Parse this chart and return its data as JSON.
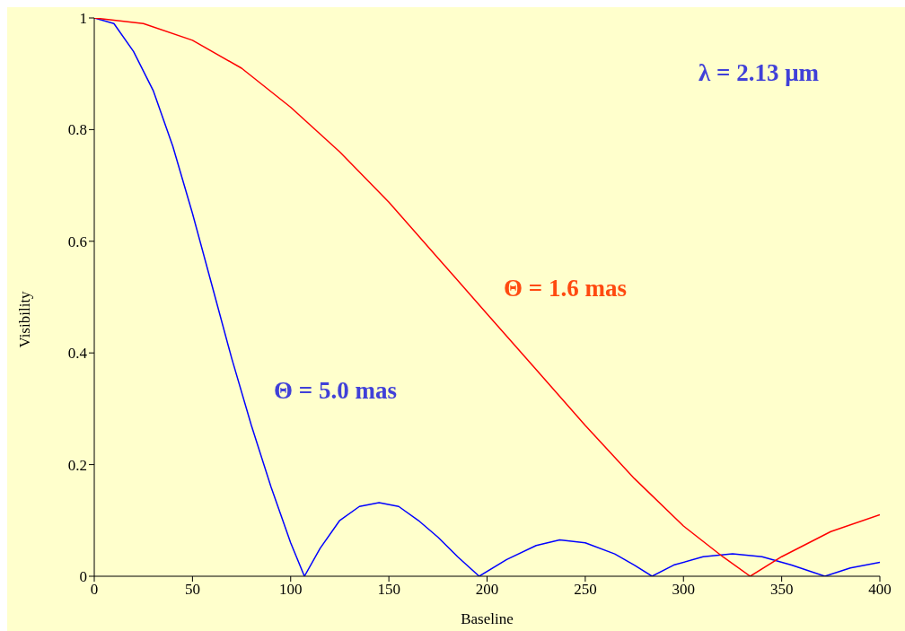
{
  "chart_data": {
    "type": "line",
    "xlabel": "Baseline",
    "ylabel": "Visibility",
    "xlim": [
      0,
      400
    ],
    "xticks": [
      0,
      50,
      100,
      150,
      200,
      250,
      300,
      350,
      400
    ],
    "ylim": [
      0,
      1
    ],
    "yticks": [
      0,
      0.2,
      0.4,
      0.6,
      0.8,
      1
    ],
    "grid": false,
    "legend": false,
    "marker": "none",
    "line_style": "solid",
    "annotations": [
      "λ = 2.13 μm"
    ],
    "series": [
      {
        "name": "Θ = 5.0 mas",
        "color": "#0000ff",
        "x": [
          0,
          10,
          20,
          30,
          40,
          50,
          60,
          70,
          80,
          90,
          100,
          107,
          115,
          125,
          135,
          145,
          155,
          165,
          175,
          185,
          196,
          210,
          225,
          237,
          250,
          265,
          275,
          284,
          295,
          310,
          325,
          340,
          355,
          372,
          385,
          400
        ],
        "values": [
          1,
          0.99,
          0.94,
          0.87,
          0.77,
          0.65,
          0.52,
          0.39,
          0.27,
          0.16,
          0.06,
          0,
          0.05,
          0.1,
          0.125,
          0.132,
          0.125,
          0.1,
          0.07,
          0.035,
          0,
          0.03,
          0.055,
          0.065,
          0.06,
          0.04,
          0.02,
          0,
          0.02,
          0.035,
          0.04,
          0.035,
          0.02,
          0,
          0.015,
          0.025
        ]
      },
      {
        "name": "Θ = 1.6 mas",
        "color": "#ff0000",
        "x": [
          0,
          25,
          50,
          75,
          100,
          125,
          150,
          175,
          200,
          225,
          250,
          275,
          300,
          320,
          334,
          350,
          375,
          400
        ],
        "values": [
          1,
          0.99,
          0.96,
          0.91,
          0.84,
          0.76,
          0.67,
          0.57,
          0.47,
          0.37,
          0.27,
          0.175,
          0.09,
          0.035,
          0,
          0.035,
          0.08,
          0.11
        ]
      }
    ]
  }
}
